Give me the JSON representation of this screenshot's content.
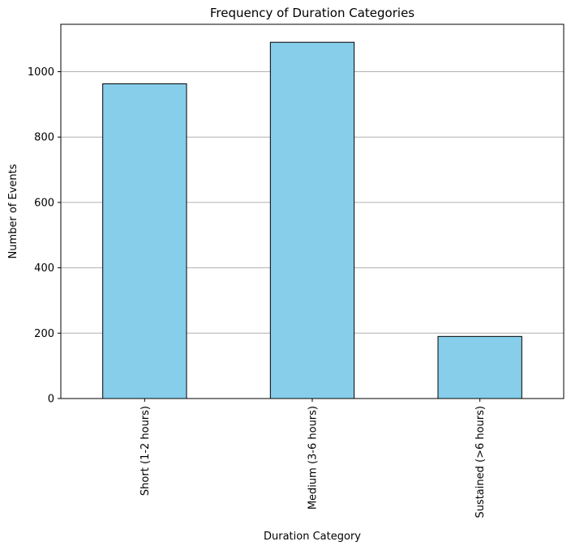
{
  "chart_data": {
    "type": "bar",
    "title": "Frequency of Duration Categories",
    "xlabel": "Duration Category",
    "ylabel": "Number of Events",
    "categories": [
      "Short (1-2 hours)",
      "Medium (3-6 hours)",
      "Sustained (>6 hours)"
    ],
    "values": [
      963,
      1090,
      190
    ],
    "ylim": [
      0,
      1145
    ],
    "yticks": [
      0,
      200,
      400,
      600,
      800,
      1000
    ],
    "grid": "y",
    "colors": {
      "bar_fill": "#87ceeb",
      "bar_edge": "#000000",
      "grid": "#b0b0b0"
    }
  }
}
